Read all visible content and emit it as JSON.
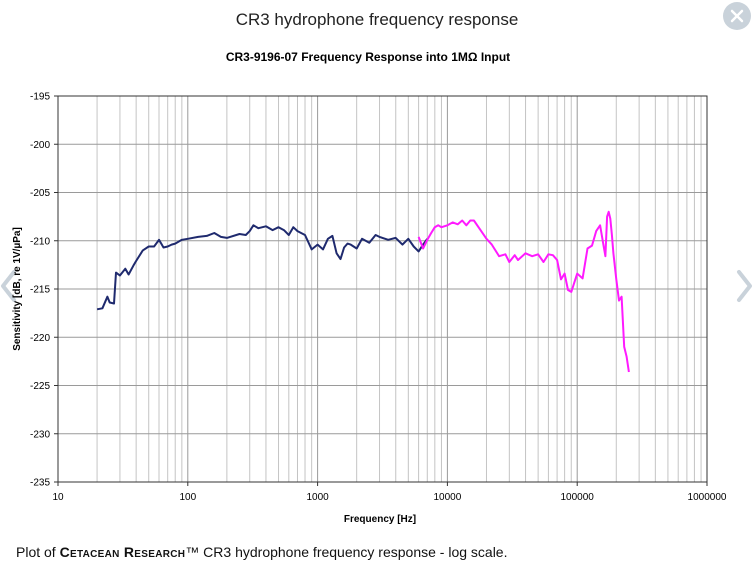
{
  "viewer": {
    "title": "CR3 hydrophone frequency response",
    "caption_prefix": "Plot of ",
    "caption_brand": "Cetacean Research",
    "caption_suffix": "™ CR3 hydrophone frequency response - log scale.",
    "close_icon": "close-icon",
    "prev_icon": "chevron-left-icon",
    "next_icon": "chevron-right-icon"
  },
  "chart_data": {
    "type": "line",
    "title": "CR3-9196-07 Frequency Response into 1MΩ Input",
    "xlabel": "Frequency [Hz]",
    "ylabel": "Sensitivity [dB, re 1V/µPa]",
    "xscale": "log",
    "xlim": [
      10,
      1000000
    ],
    "ylim": [
      -235,
      -195
    ],
    "xticks": [
      "10",
      "100",
      "1000",
      "10000",
      "100000",
      "1000000"
    ],
    "yticks": [
      "-195",
      "-200",
      "-205",
      "-210",
      "-215",
      "-220",
      "-225",
      "-230",
      "-235"
    ],
    "grid": true,
    "series": [
      {
        "color": "#1f2a6e",
        "x": [
          20,
          22,
          24,
          25,
          27,
          28,
          30,
          33,
          35,
          38,
          40,
          45,
          50,
          55,
          60,
          65,
          70,
          75,
          80,
          90,
          100,
          120,
          140,
          160,
          180,
          200,
          250,
          280,
          300,
          320,
          350,
          400,
          450,
          500,
          550,
          600,
          650,
          700,
          800,
          900,
          1000,
          1100,
          1200,
          1300,
          1400,
          1500,
          1600,
          1700,
          1800,
          2000,
          2200,
          2500,
          2800,
          3000,
          3500,
          4000,
          4500,
          5000,
          5500,
          6000,
          6500,
          7000
        ],
        "y": [
          -217.1,
          -217.0,
          -215.8,
          -216.4,
          -216.5,
          -213.3,
          -213.6,
          -212.9,
          -213.5,
          -212.6,
          -212.1,
          -211.0,
          -210.6,
          -210.6,
          -209.9,
          -210.7,
          -210.6,
          -210.4,
          -210.3,
          -209.9,
          -209.8,
          -209.6,
          -209.5,
          -209.2,
          -209.6,
          -209.7,
          -209.3,
          -209.4,
          -209.0,
          -208.4,
          -208.7,
          -208.5,
          -208.9,
          -208.6,
          -208.9,
          -209.4,
          -208.6,
          -209.0,
          -209.4,
          -210.9,
          -210.4,
          -210.9,
          -209.8,
          -209.5,
          -211.3,
          -211.9,
          -210.7,
          -210.3,
          -210.4,
          -210.8,
          -209.8,
          -210.2,
          -209.4,
          -209.6,
          -209.9,
          -209.7,
          -210.4,
          -209.8,
          -210.6,
          -211.1,
          -210.4,
          -209.8
        ]
      },
      {
        "color": "#ff1aff",
        "x": [
          6000,
          6500,
          7000,
          7500,
          8000,
          8500,
          9000,
          10000,
          11000,
          12000,
          13000,
          14000,
          15000,
          16000,
          18000,
          20000,
          22000,
          25000,
          28000,
          30000,
          33000,
          35000,
          40000,
          45000,
          50000,
          55000,
          60000,
          65000,
          70000,
          75000,
          80000,
          85000,
          90000,
          100000,
          110000,
          120000,
          130000,
          140000,
          150000,
          160000,
          165000,
          170000,
          175000,
          180000,
          185000,
          190000,
          200000,
          210000,
          220000,
          230000,
          240000,
          250000
        ],
        "y": [
          -209.6,
          -210.8,
          -209.9,
          -209.2,
          -208.6,
          -208.4,
          -208.6,
          -208.4,
          -208.1,
          -208.3,
          -207.9,
          -208.4,
          -207.9,
          -207.9,
          -208.9,
          -209.8,
          -210.4,
          -211.6,
          -211.4,
          -212.2,
          -211.5,
          -212.0,
          -211.3,
          -211.6,
          -211.4,
          -212.2,
          -211.4,
          -211.5,
          -212.0,
          -214.0,
          -213.4,
          -215.1,
          -215.3,
          -213.4,
          -213.9,
          -210.8,
          -210.5,
          -209.0,
          -208.4,
          -210.6,
          -211.6,
          -207.5,
          -207.0,
          -207.7,
          -209.4,
          -211.3,
          -214.0,
          -216.2,
          -215.8,
          -221.0,
          -222.0,
          -223.6
        ]
      }
    ]
  }
}
